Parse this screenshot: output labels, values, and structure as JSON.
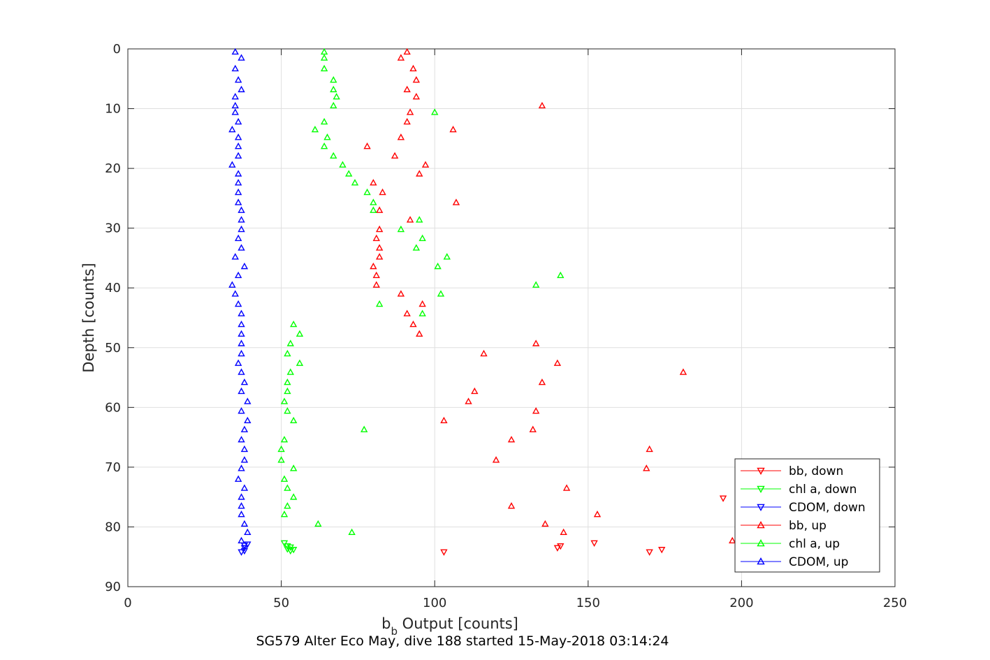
{
  "chart_data": {
    "type": "scatter",
    "xlabel_main": "b",
    "xlabel_sub": "b",
    "xlabel_rest": " Output [counts]",
    "ylabel": "Depth [counts]",
    "caption": "SG579 Alter Eco May, dive 188 started 15-May-2018 03:14:24",
    "xlim": [
      0,
      250
    ],
    "ylim": [
      0,
      90
    ],
    "y_reversed": true,
    "grid": true,
    "legend_position": "bottom-right",
    "xticks": [
      "0",
      "50",
      "100",
      "150",
      "200",
      "250"
    ],
    "yticks": [
      "0",
      "10",
      "20",
      "30",
      "40",
      "50",
      "60",
      "70",
      "80",
      "90"
    ],
    "series": [
      {
        "name": "bb, down",
        "color": "#ff0000",
        "marker": "triangle-down",
        "points": [
          [
            103,
            84.2
          ],
          [
            140,
            83.5
          ],
          [
            141,
            83.2
          ],
          [
            152,
            82.7
          ],
          [
            170,
            84.2
          ],
          [
            174,
            83.8
          ],
          [
            194,
            75.2
          ]
        ]
      },
      {
        "name": "chl a, down",
        "color": "#00ff00",
        "marker": "triangle-down",
        "points": [
          [
            51,
            82.7
          ],
          [
            52,
            83.2
          ],
          [
            52,
            83.7
          ],
          [
            53,
            84.0
          ],
          [
            54,
            83.8
          ],
          [
            53,
            83.4
          ]
        ]
      },
      {
        "name": "CDOM, down",
        "color": "#0000ff",
        "marker": "triangle-down",
        "points": [
          [
            38,
            83.5
          ],
          [
            38,
            84.0
          ],
          [
            39,
            82.9
          ],
          [
            37,
            84.2
          ],
          [
            38,
            83.1
          ]
        ]
      },
      {
        "name": "bb, up",
        "color": "#ff0000",
        "marker": "triangle-up",
        "points": [
          [
            91,
            0.5
          ],
          [
            89,
            1.5
          ],
          [
            93,
            3.3
          ],
          [
            94,
            5.2
          ],
          [
            91,
            6.8
          ],
          [
            94,
            8.0
          ],
          [
            135,
            9.5
          ],
          [
            92,
            10.6
          ],
          [
            91,
            12.2
          ],
          [
            106,
            13.5
          ],
          [
            89,
            14.8
          ],
          [
            78,
            16.3
          ],
          [
            87,
            17.9
          ],
          [
            97,
            19.4
          ],
          [
            95,
            20.9
          ],
          [
            80,
            22.4
          ],
          [
            83,
            24.0
          ],
          [
            107,
            25.7
          ],
          [
            82,
            27.0
          ],
          [
            92,
            28.6
          ],
          [
            82,
            30.2
          ],
          [
            81,
            31.7
          ],
          [
            82,
            33.3
          ],
          [
            82,
            34.8
          ],
          [
            80,
            36.4
          ],
          [
            81,
            37.9
          ],
          [
            81,
            39.5
          ],
          [
            89,
            41.0
          ],
          [
            96,
            42.7
          ],
          [
            91,
            44.3
          ],
          [
            93,
            46.1
          ],
          [
            95,
            47.7
          ],
          [
            133,
            49.3
          ],
          [
            116,
            51.0
          ],
          [
            140,
            52.6
          ],
          [
            181,
            54.1
          ],
          [
            135,
            55.8
          ],
          [
            113,
            57.3
          ],
          [
            111,
            59.0
          ],
          [
            133,
            60.6
          ],
          [
            103,
            62.2
          ],
          [
            132,
            63.7
          ],
          [
            125,
            65.4
          ],
          [
            170,
            67.0
          ],
          [
            120,
            68.8
          ],
          [
            169,
            70.2
          ],
          [
            143,
            73.5
          ],
          [
            125,
            76.5
          ],
          [
            153,
            77.9
          ],
          [
            136,
            79.5
          ],
          [
            142,
            80.9
          ],
          [
            197,
            82.3
          ]
        ]
      },
      {
        "name": "chl a, up",
        "color": "#00ff00",
        "marker": "triangle-up",
        "points": [
          [
            64,
            0.5
          ],
          [
            64,
            1.5
          ],
          [
            64,
            3.3
          ],
          [
            67,
            5.2
          ],
          [
            67,
            6.8
          ],
          [
            68,
            8.0
          ],
          [
            67,
            9.5
          ],
          [
            100,
            10.6
          ],
          [
            64,
            12.2
          ],
          [
            61,
            13.5
          ],
          [
            65,
            14.8
          ],
          [
            64,
            16.3
          ],
          [
            67,
            17.9
          ],
          [
            70,
            19.4
          ],
          [
            72,
            20.9
          ],
          [
            74,
            22.4
          ],
          [
            78,
            24.0
          ],
          [
            80,
            25.7
          ],
          [
            80,
            27.0
          ],
          [
            95,
            28.6
          ],
          [
            89,
            30.2
          ],
          [
            96,
            31.7
          ],
          [
            94,
            33.3
          ],
          [
            104,
            34.8
          ],
          [
            101,
            36.4
          ],
          [
            141,
            37.9
          ],
          [
            133,
            39.5
          ],
          [
            102,
            41.0
          ],
          [
            82,
            42.7
          ],
          [
            96,
            44.3
          ],
          [
            54,
            46.1
          ],
          [
            56,
            47.7
          ],
          [
            53,
            49.3
          ],
          [
            52,
            51.0
          ],
          [
            56,
            52.6
          ],
          [
            53,
            54.1
          ],
          [
            52,
            55.8
          ],
          [
            52,
            57.3
          ],
          [
            51,
            59.0
          ],
          [
            52,
            60.6
          ],
          [
            54,
            62.2
          ],
          [
            77,
            63.7
          ],
          [
            51,
            65.4
          ],
          [
            50,
            67.0
          ],
          [
            50,
            68.8
          ],
          [
            54,
            70.2
          ],
          [
            51,
            72.0
          ],
          [
            52,
            73.5
          ],
          [
            54,
            75.0
          ],
          [
            52,
            76.5
          ],
          [
            51,
            77.9
          ],
          [
            62,
            79.5
          ],
          [
            73,
            80.9
          ]
        ]
      },
      {
        "name": "CDOM, up",
        "color": "#0000ff",
        "marker": "triangle-up",
        "points": [
          [
            35,
            0.5
          ],
          [
            37,
            1.5
          ],
          [
            35,
            3.3
          ],
          [
            36,
            5.2
          ],
          [
            37,
            6.8
          ],
          [
            35,
            8.0
          ],
          [
            35,
            9.5
          ],
          [
            35,
            10.6
          ],
          [
            36,
            12.2
          ],
          [
            34,
            13.5
          ],
          [
            36,
            14.8
          ],
          [
            36,
            16.3
          ],
          [
            36,
            17.9
          ],
          [
            34,
            19.4
          ],
          [
            36,
            20.9
          ],
          [
            36,
            22.4
          ],
          [
            36,
            24.0
          ],
          [
            36,
            25.7
          ],
          [
            37,
            27.0
          ],
          [
            37,
            28.6
          ],
          [
            37,
            30.2
          ],
          [
            36,
            31.7
          ],
          [
            37,
            33.3
          ],
          [
            35,
            34.8
          ],
          [
            38,
            36.4
          ],
          [
            36,
            37.9
          ],
          [
            34,
            39.5
          ],
          [
            35,
            41.0
          ],
          [
            36,
            42.7
          ],
          [
            37,
            44.3
          ],
          [
            37,
            46.1
          ],
          [
            37,
            47.7
          ],
          [
            37,
            49.3
          ],
          [
            37,
            51.0
          ],
          [
            36,
            52.6
          ],
          [
            37,
            54.1
          ],
          [
            38,
            55.8
          ],
          [
            37,
            57.3
          ],
          [
            39,
            59.0
          ],
          [
            37,
            60.6
          ],
          [
            39,
            62.2
          ],
          [
            38,
            63.7
          ],
          [
            37,
            65.4
          ],
          [
            38,
            67.0
          ],
          [
            38,
            68.8
          ],
          [
            37,
            70.2
          ],
          [
            36,
            72.0
          ],
          [
            38,
            73.5
          ],
          [
            37,
            75.0
          ],
          [
            37,
            76.5
          ],
          [
            37,
            77.9
          ],
          [
            38,
            79.5
          ],
          [
            39,
            80.9
          ],
          [
            37,
            82.3
          ]
        ]
      }
    ]
  }
}
